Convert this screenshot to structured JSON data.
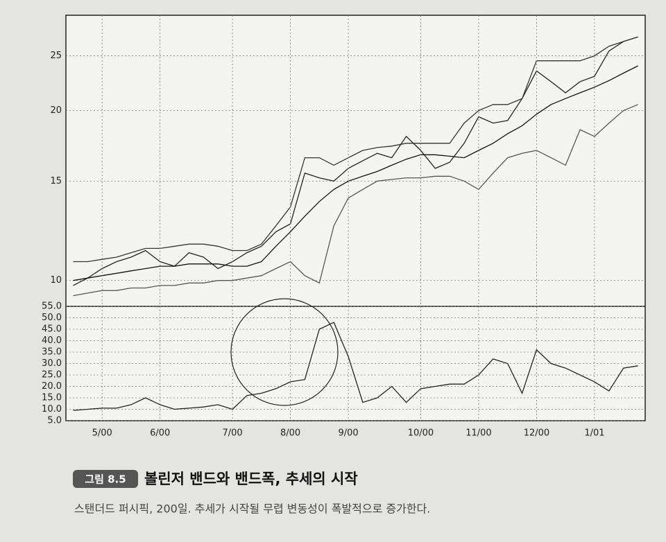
{
  "chart_data": [
    {
      "type": "line",
      "log": true,
      "grid": true,
      "ylim": [
        9,
        29.5
      ],
      "yticks": [
        10,
        15,
        20,
        25
      ],
      "series": [
        {
          "color": "#222",
          "values": [
            9.8,
            10.1,
            10.5,
            10.8,
            11.0,
            11.3,
            10.8,
            10.6,
            11.2,
            11.0,
            10.5,
            10.8,
            11.2,
            11.5,
            12.2,
            12.6,
            15.5,
            15.2,
            15.0,
            15.8,
            16.3,
            16.8,
            16.5,
            18.0,
            17.0,
            15.8,
            16.2,
            17.5,
            19.5,
            19.0,
            19.2,
            21.0,
            23.5,
            22.5,
            21.5,
            22.5,
            23.0,
            25.5,
            26.5,
            27.0
          ]
        },
        {
          "color": "#333",
          "values": [
            10.8,
            10.8,
            10.9,
            11.0,
            11.2,
            11.4,
            11.4,
            11.5,
            11.6,
            11.6,
            11.5,
            11.3,
            11.3,
            11.6,
            12.5,
            13.5,
            16.5,
            16.5,
            16.0,
            16.5,
            17.0,
            17.2,
            17.3,
            17.5,
            17.5,
            17.5,
            17.5,
            19.0,
            20.0,
            20.5,
            20.5,
            21.0,
            24.5,
            24.5,
            24.5,
            24.5,
            25.0,
            26.0,
            26.5,
            27.0
          ]
        },
        {
          "color": "#111",
          "values": [
            10.0,
            10.1,
            10.2,
            10.3,
            10.4,
            10.5,
            10.6,
            10.6,
            10.7,
            10.7,
            10.7,
            10.6,
            10.6,
            10.8,
            11.5,
            12.2,
            13.0,
            13.8,
            14.5,
            15.0,
            15.3,
            15.6,
            16.0,
            16.4,
            16.7,
            16.7,
            16.6,
            16.5,
            17.0,
            17.5,
            18.2,
            18.8,
            19.7,
            20.5,
            21.0,
            21.5,
            22.0,
            22.6,
            23.3,
            24.0
          ]
        },
        {
          "color": "#555",
          "values": [
            9.4,
            9.5,
            9.6,
            9.6,
            9.7,
            9.7,
            9.8,
            9.8,
            9.9,
            9.9,
            10.0,
            10.0,
            10.1,
            10.2,
            10.5,
            10.8,
            10.2,
            9.9,
            12.5,
            14.0,
            14.5,
            15.0,
            15.1,
            15.2,
            15.2,
            15.3,
            15.3,
            15.0,
            14.5,
            15.5,
            16.5,
            16.8,
            17.0,
            16.5,
            16.0,
            18.5,
            18.0,
            19.0,
            20.0,
            20.5
          ]
        }
      ]
    },
    {
      "type": "line",
      "grid": true,
      "categories": [
        null,
        null,
        "5/00",
        null,
        null,
        null,
        "6/00",
        null,
        null,
        null,
        null,
        "7/00",
        null,
        null,
        null,
        "8/00",
        null,
        null,
        null,
        "9/00",
        null,
        null,
        null,
        null,
        "10/00",
        null,
        null,
        null,
        "11/00",
        null,
        null,
        null,
        "12/00",
        null,
        null,
        null,
        "1/01",
        null,
        null,
        null
      ],
      "ylim": [
        5,
        55
      ],
      "yticks": [
        {
          "value": 5,
          "label": "5.0"
        },
        {
          "value": 10,
          "label": "10.0"
        },
        {
          "value": 15,
          "label": "15.0"
        },
        {
          "value": 20,
          "label": "20.0"
        },
        {
          "value": 25,
          "label": "25.0"
        },
        {
          "value": 30,
          "label": "30.0"
        },
        {
          "value": 35,
          "label": "35.0"
        },
        {
          "value": 40,
          "label": "40.0"
        },
        {
          "value": 45,
          "label": "45.0"
        },
        {
          "value": 50,
          "label": "50.0"
        },
        {
          "value": 55,
          "label": "55.0"
        }
      ],
      "series": [
        {
          "color": "#222",
          "values": [
            9.5,
            10,
            10.5,
            10.5,
            12,
            15,
            12,
            10,
            10.5,
            11,
            12,
            10,
            16,
            17,
            19,
            22,
            23,
            45,
            48,
            33,
            13,
            15,
            20,
            13,
            19,
            20,
            21,
            21,
            25,
            32,
            30,
            17,
            36,
            30,
            28,
            25,
            22,
            18,
            28,
            29
          ]
        }
      ]
    }
  ],
  "figure": {
    "label": "그림 8.5",
    "title": "볼린저 밴드와 밴드폭, 추세의 시작",
    "subtitle": "스탠더드 퍼시픽, 200일. 추세가 시작될 무렵 변동성이 폭발적으로 증가한다."
  }
}
